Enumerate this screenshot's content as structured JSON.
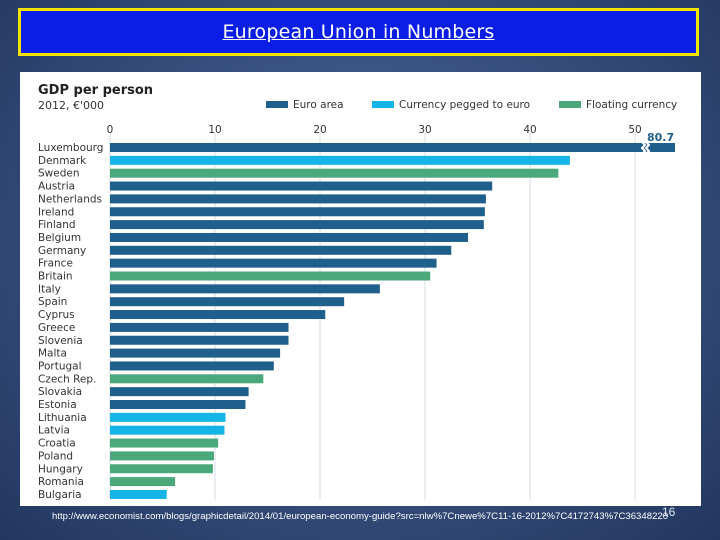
{
  "slide": {
    "title": "European Union in Numbers",
    "footer_url": "http://www.economist.com/blogs/graphicdetail/2014/01/european-economy-guide?src=nlw%7Cnewe%7C11-16-2012%7C4172743%7C36348220",
    "slide_number": "16"
  },
  "colors": {
    "euro_area": "#1f5f8b",
    "currency_pegged": "#14b4e6",
    "floating": "#4aa87a",
    "title_background": "#0a1ee6",
    "title_border": "#f2e600"
  },
  "chart_data": {
    "type": "bar",
    "orientation": "horizontal",
    "title": "GDP per person",
    "subtitle": "2012, €'000",
    "xlim": [
      0,
      53
    ],
    "x_ticks": [
      0,
      10,
      20,
      30,
      40,
      50
    ],
    "grid": true,
    "legend_position": "top-right",
    "legend": [
      {
        "key": "euro",
        "label": "Euro area"
      },
      {
        "key": "pegged",
        "label": "Currency pegged to euro"
      },
      {
        "key": "floating",
        "label": "Floating currency"
      }
    ],
    "categories": [
      "Luxembourg",
      "Denmark",
      "Sweden",
      "Austria",
      "Netherlands",
      "Ireland",
      "Finland",
      "Belgium",
      "Germany",
      "France",
      "Britain",
      "Italy",
      "Spain",
      "Cyprus",
      "Greece",
      "Slovenia",
      "Malta",
      "Portugal",
      "Czech Rep.",
      "Slovakia",
      "Estonia",
      "Lithuania",
      "Latvia",
      "Croatia",
      "Poland",
      "Hungary",
      "Romania",
      "Bulgaria"
    ],
    "values": [
      80.7,
      43.8,
      42.7,
      36.4,
      35.8,
      35.7,
      35.6,
      34.1,
      32.5,
      31.1,
      30.5,
      25.7,
      22.3,
      20.5,
      17.0,
      17.0,
      16.2,
      15.6,
      14.6,
      13.2,
      12.9,
      11.0,
      10.9,
      10.3,
      9.9,
      9.8,
      6.2,
      5.4
    ],
    "groups": [
      "euro",
      "pegged",
      "floating",
      "euro",
      "euro",
      "euro",
      "euro",
      "euro",
      "euro",
      "euro",
      "floating",
      "euro",
      "euro",
      "euro",
      "euro",
      "euro",
      "euro",
      "euro",
      "floating",
      "euro",
      "euro",
      "pegged",
      "pegged",
      "floating",
      "floating",
      "floating",
      "floating",
      "pegged"
    ],
    "value_labels": {
      "Luxembourg": "80.7"
    },
    "axis_break": "Luxembourg bar truncated beyond 50"
  }
}
